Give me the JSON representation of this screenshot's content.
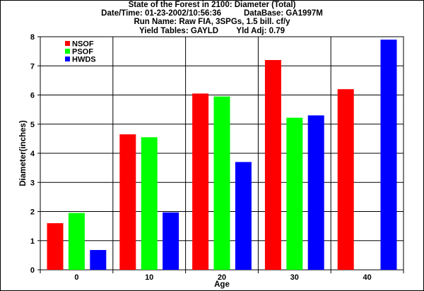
{
  "header": {
    "title": "State of the Forest in 2100: Diameter (Total)",
    "datetime": "Date/Time: 01-23-2002/10:56:36",
    "database": "DataBase: GA1997M",
    "run_name": "Run Name: Raw FIA, 3SPGs, 1.5 bill. cf/y",
    "yield_tables": "Yield Tables: GAYLD",
    "yld_adj": "Yld Adj: 0.79"
  },
  "chart_data": {
    "type": "bar",
    "title": "State of the Forest in 2100: Diameter (Total)",
    "xlabel": "Age",
    "ylabel": "Diameter(inches)",
    "categories": [
      "0",
      "10",
      "20",
      "30",
      "40"
    ],
    "ylim": [
      0,
      8
    ],
    "yticks": [
      "0",
      "1",
      "2",
      "3",
      "4",
      "5",
      "6",
      "7",
      "8"
    ],
    "grid": true,
    "legend_position": "top-left",
    "series": [
      {
        "name": "NSOF",
        "color": "#ff0000",
        "values": [
          1.6,
          4.65,
          6.05,
          7.2,
          6.2
        ]
      },
      {
        "name": "PSOF",
        "color": "#00ff00",
        "values": [
          1.95,
          4.55,
          5.95,
          5.22,
          null
        ]
      },
      {
        "name": "HWDS",
        "color": "#0000ff",
        "values": [
          0.68,
          1.97,
          3.7,
          5.3,
          7.9
        ]
      }
    ]
  }
}
